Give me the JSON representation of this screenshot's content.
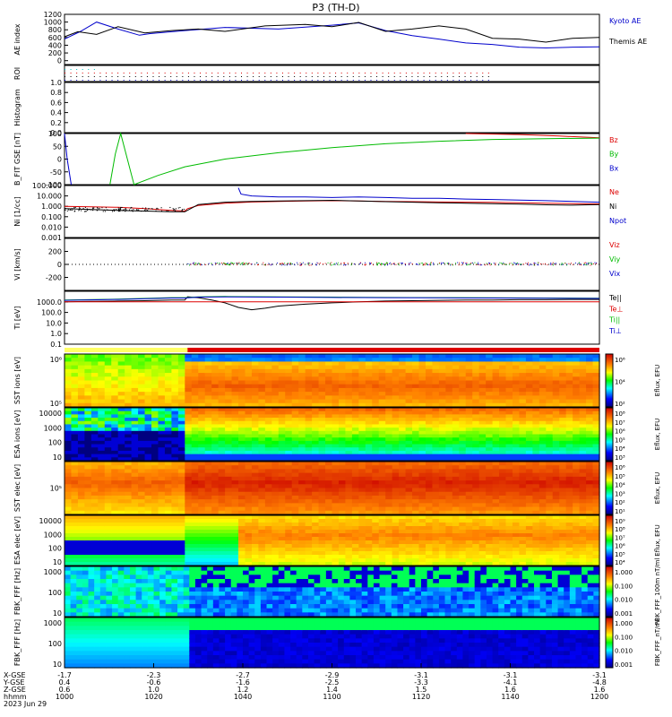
{
  "chart_data": {
    "type": "line",
    "title": "P3 (TH-D)",
    "time_axis": {
      "ticks": [
        "1000",
        "1020",
        "1040",
        "1100",
        "1120",
        "1140",
        "1200"
      ],
      "row_labels": [
        "X-GSE",
        "Y-GSE",
        "Z-GSE",
        "hhmm",
        "2023 Jun 29"
      ],
      "x_gse": [
        "-1.7",
        "-2.3",
        "-2.7",
        "-2.9",
        "-3.1",
        "-3.1",
        "-3.1"
      ],
      "y_gse": [
        "0.4",
        "-0.6",
        "-1.6",
        "-2.5",
        "-3.3",
        "-4.1",
        "-4.8"
      ],
      "z_gse": [
        "0.6",
        "1.0",
        "1.2",
        "1.4",
        "1.5",
        "1.6",
        "1.6"
      ]
    },
    "panels": [
      {
        "id": "ae",
        "ylabel": "AE index",
        "ylim": [
          -100,
          1200
        ],
        "yticks": [
          "1200",
          "1000",
          "800",
          "600",
          "400",
          "200",
          "0"
        ],
        "series": [
          {
            "name": "Kyoto AE",
            "color": "#0000cc",
            "x": [
              0,
              6,
              12,
              20,
              28,
              32,
              45,
              60,
              80,
              100,
              110,
              120,
              130,
              140,
              150,
              160,
              170,
              180,
              190,
              200
            ],
            "y": [
              560,
              760,
              1000,
              820,
              660,
              700,
              780,
              860,
              820,
              920,
              980,
              780,
              650,
              560,
              460,
              420,
              350,
              330,
              350,
              360
            ]
          },
          {
            "name": "Themis AE",
            "color": "#000000",
            "x": [
              0,
              5,
              12,
              20,
              30,
              40,
              50,
              60,
              75,
              90,
              100,
              110,
              120,
              130,
              140,
              150,
              160,
              170,
              180,
              190,
              200
            ],
            "y": [
              620,
              750,
              680,
              880,
              720,
              780,
              820,
              760,
              900,
              940,
              880,
              990,
              760,
              820,
              900,
              820,
              580,
              560,
              480,
              580,
              600
            ]
          }
        ]
      },
      {
        "id": "roi",
        "ylabel": "ROI"
      },
      {
        "id": "histogram",
        "ylabel": "Histogram",
        "ylim": [
          0,
          1.0
        ],
        "yticks": [
          "1.0",
          "0.8",
          "0.6",
          "0.4",
          "0.2",
          "0.0"
        ]
      },
      {
        "id": "bfit",
        "ylabel": "B_FIT GSE [nT]",
        "ylim": [
          -100,
          100
        ],
        "yticks": [
          "100",
          "50",
          "0",
          "-50",
          "-100"
        ],
        "series": [
          {
            "name": "Bz",
            "color": "#dd0000",
            "x": [
              150,
              170,
              185,
              200
            ],
            "y": [
              100,
              96,
              90,
              83
            ]
          },
          {
            "name": "By",
            "color": "#00bb00",
            "x": [
              17,
              19,
              21,
              26,
              35,
              45,
              60,
              80,
              100,
              120,
              140,
              160,
              180,
              200
            ],
            "y": [
              -100,
              20,
              100,
              -100,
              -64,
              -30,
              0,
              25,
              45,
              60,
              70,
              77,
              80,
              82
            ]
          },
          {
            "name": "Bx",
            "color": "#0000cc",
            "x": [
              0,
              1,
              2.5
            ],
            "y": [
              100,
              0,
              -100
            ]
          }
        ]
      },
      {
        "id": "ni",
        "ylabel": "Ni [1/cc]",
        "yscale": "log",
        "ylim": [
          0.001,
          100
        ],
        "yticks": [
          "100.000",
          "10.000",
          "1.000",
          "0.100",
          "0.010",
          "0.001"
        ],
        "series": [
          {
            "name": "Ne",
            "color": "#dd0000",
            "x": [
              0,
              10,
              20,
              30,
              40,
              45,
              46,
              50,
              60,
              70,
              80,
              90,
              100,
              110,
              120,
              130,
              140,
              150,
              160,
              170,
              180,
              190,
              200
            ],
            "y": [
              1.0,
              0.9,
              0.8,
              0.6,
              0.4,
              0.35,
              0.6,
              1.2,
              2.0,
              2.6,
              3.0,
              3.2,
              3.5,
              3.2,
              3.0,
              2.8,
              2.6,
              2.5,
              2.4,
              2.2,
              2.0,
              1.8,
              1.7
            ]
          },
          {
            "name": "Ni",
            "color": "#000000",
            "x": [
              0,
              10,
              20,
              30,
              40,
              45,
              50,
              60,
              70,
              80,
              90,
              100,
              110,
              120,
              130,
              140,
              150,
              160,
              170,
              180,
              190,
              200
            ],
            "y": [
              0.6,
              0.5,
              0.4,
              0.35,
              0.3,
              0.3,
              1.5,
              2.5,
              3.0,
              3.2,
              3.5,
              3.8,
              3.2,
              2.8,
              2.5,
              2.2,
              2.0,
              1.8,
              1.6,
              1.4,
              1.3,
              1.5
            ]
          },
          {
            "name": "Npot",
            "color": "#0000cc",
            "x": [
              65,
              66,
              70,
              80,
              90,
              100,
              110,
              120,
              130,
              140,
              150,
              160,
              170,
              180,
              190,
              200
            ],
            "y": [
              60,
              15,
              10,
              8,
              8,
              7,
              8,
              7,
              6,
              6,
              5,
              4.5,
              4,
              3.5,
              3,
              2.5
            ]
          }
        ]
      },
      {
        "id": "vi",
        "ylabel": "Vi [km/s]",
        "ylim": [
          -400,
          400
        ],
        "yticks": [
          "200",
          "0",
          "-200"
        ],
        "series": [
          {
            "name": "Viz",
            "color": "#dd0000",
            "x": [
              0,
              200
            ],
            "y": [
              0,
              0
            ]
          },
          {
            "name": "Viy",
            "color": "#00bb00",
            "x": [
              0,
              200
            ],
            "y": [
              0,
              0
            ]
          },
          {
            "name": "Vix",
            "color": "#0000cc",
            "x": [
              0,
              200
            ],
            "y": [
              0,
              0
            ]
          }
        ]
      },
      {
        "id": "ti",
        "ylabel": "Ti [eV]",
        "yscale": "log",
        "ylim": [
          0.1,
          10000
        ],
        "yticks": [
          "1000.0",
          "100.0",
          "10.0",
          "1.0",
          "0.1"
        ],
        "series": [
          {
            "name": "Te||",
            "color": "#000000",
            "x": [
              0,
              10,
              20,
              30,
              40,
              45,
              46,
              50,
              55,
              60,
              65,
              70,
              75,
              80,
              90,
              100,
              110,
              120,
              130,
              140,
              150,
              160,
              170,
              180,
              190,
              200
            ],
            "y": [
              1000,
              1100,
              1200,
              1300,
              1500,
              1500,
              3000,
              2500,
              1500,
              800,
              300,
              180,
              250,
              400,
              600,
              800,
              1000,
              1200,
              1300,
              1400,
              1500,
              1500,
              1600,
              1600,
              1700,
              1700
            ]
          },
          {
            "name": "Te⊥",
            "color": "#dd0000",
            "x": [
              0,
              200
            ],
            "y": [
              1000,
              1000
            ]
          },
          {
            "name": "Ti||",
            "color": "#00bb00",
            "x": [
              0,
              20,
              40,
              45,
              50,
              60,
              80,
              100,
              120,
              140,
              160,
              180,
              200
            ],
            "y": [
              1500,
              1800,
              2500,
              2500,
              3000,
              3200,
              3000,
              2800,
              2600,
              2500,
              2400,
              2300,
              2200
            ]
          },
          {
            "name": "Ti⊥",
            "color": "#0000cc",
            "x": [
              0,
              20,
              40,
              45,
              50,
              60,
              80,
              100,
              120,
              140,
              160,
              180,
              200
            ],
            "y": [
              1400,
              1700,
              2300,
              2300,
              2800,
              3000,
              2800,
              2600,
              2500,
              2400,
              2300,
              2200,
              2100
            ]
          }
        ]
      },
      {
        "id": "mode_bar"
      },
      {
        "id": "sst_ion",
        "ylabel": "SST ions [eV]",
        "cbar_label": "Eflux, EFU",
        "cbar_ticks": [
          "10⁶",
          "10⁴",
          "10²"
        ],
        "yticks": [
          "10⁶",
          "10⁵"
        ]
      },
      {
        "id": "esa_ion",
        "ylabel": "ESA ions [eV]",
        "cbar_label": "Eflux, EFU",
        "cbar_ticks": [
          "10⁸",
          "10⁷",
          "10⁶",
          "10⁵",
          "10⁴",
          "10³"
        ],
        "yticks": [
          "10000",
          "1000",
          "100",
          "10"
        ]
      },
      {
        "id": "sst_elec",
        "ylabel": "SST elec [eV]",
        "cbar_label": "Eflux, EFU",
        "cbar_ticks": [
          "10⁶",
          "10⁵",
          "10⁴",
          "10³",
          "10²",
          "10¹"
        ],
        "yticks": [
          "10⁵"
        ]
      },
      {
        "id": "esa_elec",
        "ylabel": "ESA elec [eV]",
        "cbar_label": "Eflux, EFU",
        "cbar_ticks": [
          "10⁹",
          "10⁸",
          "10⁷",
          "10⁶",
          "10⁵",
          "10⁴"
        ],
        "yticks": [
          "10000",
          "1000",
          "100",
          "10"
        ]
      },
      {
        "id": "fbk_ffp",
        "ylabel": "FBK_FFF [Hz]",
        "cbar_label": "FBK_FFF_100m nT/ml",
        "cbar_ticks": [
          "1.000",
          "0.100",
          "0.010",
          "0.001"
        ],
        "yticks": [
          "1000",
          "100",
          "10"
        ]
      },
      {
        "id": "fbk_scm",
        "ylabel": "FBK_FFF [Hz]",
        "cbar_label": "FBK_FFF_nT/ml",
        "cbar_ticks": [
          "1.000",
          "0.100",
          "0.010",
          "0.001"
        ],
        "yticks": [
          "1000",
          "100",
          "10"
        ]
      }
    ]
  },
  "legend_labels": {
    "ae": [
      "Kyoto AE",
      "Themis AE"
    ],
    "bfit": [
      "Bz",
      "By",
      "Bx"
    ],
    "ni": [
      "Ne",
      "Ni",
      "Npot"
    ],
    "vi": [
      "Viz",
      "Viy",
      "Vix"
    ],
    "ti": [
      "Te||",
      "Te⊥",
      "Ti||",
      "Ti⊥"
    ]
  }
}
